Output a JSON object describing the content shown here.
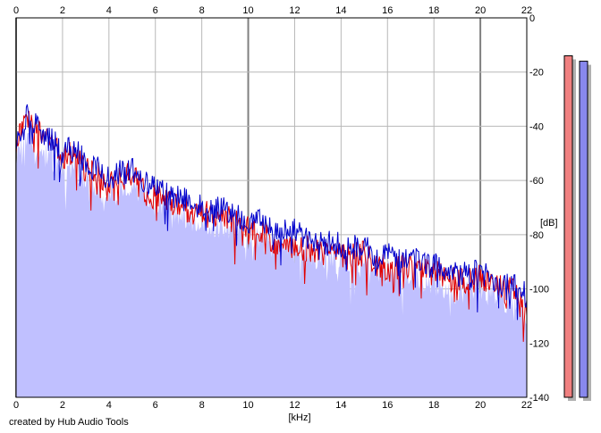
{
  "chart_data": {
    "type": "line",
    "title": "",
    "xlabel": "[kHz]",
    "ylabel": "[dB]",
    "xlim": [
      0,
      22
    ],
    "ylim": [
      -140,
      0
    ],
    "x_ticks": [
      0,
      2,
      4,
      6,
      8,
      10,
      12,
      14,
      16,
      18,
      20,
      22
    ],
    "y_ticks": [
      0,
      -20,
      -40,
      -60,
      -80,
      -100,
      -120,
      -140
    ],
    "grid": true,
    "legend": "none",
    "fill_color": "#c0c0ff",
    "series": [
      {
        "color": "#e00000",
        "x": [
          0,
          0.5,
          1,
          1.5,
          2,
          2.5,
          3,
          3.5,
          4,
          4.5,
          5,
          5.5,
          6,
          6.5,
          7,
          7.5,
          8,
          8.5,
          9,
          9.5,
          10,
          10.5,
          11,
          11.5,
          12,
          12.5,
          13,
          13.5,
          14,
          14.5,
          15,
          15.5,
          16,
          16.5,
          17,
          17.5,
          18,
          18.5,
          19,
          19.5,
          20,
          20.5,
          21,
          21.5,
          22
        ],
        "values": [
          -46,
          -37,
          -43,
          -46,
          -51,
          -50,
          -56,
          -57,
          -62,
          -59,
          -58,
          -64,
          -66,
          -68,
          -70,
          -71,
          -72,
          -73,
          -74,
          -75,
          -78,
          -78,
          -82,
          -83,
          -84,
          -85,
          -86,
          -87,
          -88,
          -88,
          -87,
          -91,
          -92,
          -92,
          -92,
          -93,
          -94,
          -96,
          -97,
          -97,
          -96,
          -98,
          -100,
          -101,
          -105
        ]
      },
      {
        "color": "#0000cc",
        "x": [
          0,
          0.5,
          1,
          1.5,
          2,
          2.5,
          3,
          3.5,
          4,
          4.5,
          5,
          5.5,
          6,
          6.5,
          7,
          7.5,
          8,
          8.5,
          9,
          9.5,
          10,
          10.5,
          11,
          11.5,
          12,
          12.5,
          13,
          13.5,
          14,
          14.5,
          15,
          15.5,
          16,
          16.5,
          17,
          17.5,
          18,
          18.5,
          19,
          19.5,
          20,
          20.5,
          21,
          21.5,
          22
        ],
        "values": [
          -44,
          -36,
          -42,
          -45,
          -50,
          -48,
          -54,
          -56,
          -60,
          -57,
          -56,
          -61,
          -63,
          -65,
          -66,
          -68,
          -69,
          -71,
          -71,
          -73,
          -76,
          -75,
          -78,
          -79,
          -79,
          -80,
          -82,
          -83,
          -84,
          -85,
          -82,
          -88,
          -88,
          -88,
          -89,
          -90,
          -91,
          -94,
          -95,
          -95,
          -94,
          -96,
          -98,
          -99,
          -103
        ]
      }
    ]
  },
  "meters": {
    "left_color": "#f08080",
    "right_color": "#8888ee",
    "left_level_db": -14,
    "right_level_db": -16
  },
  "credit": "created by Hub Audio Tools"
}
